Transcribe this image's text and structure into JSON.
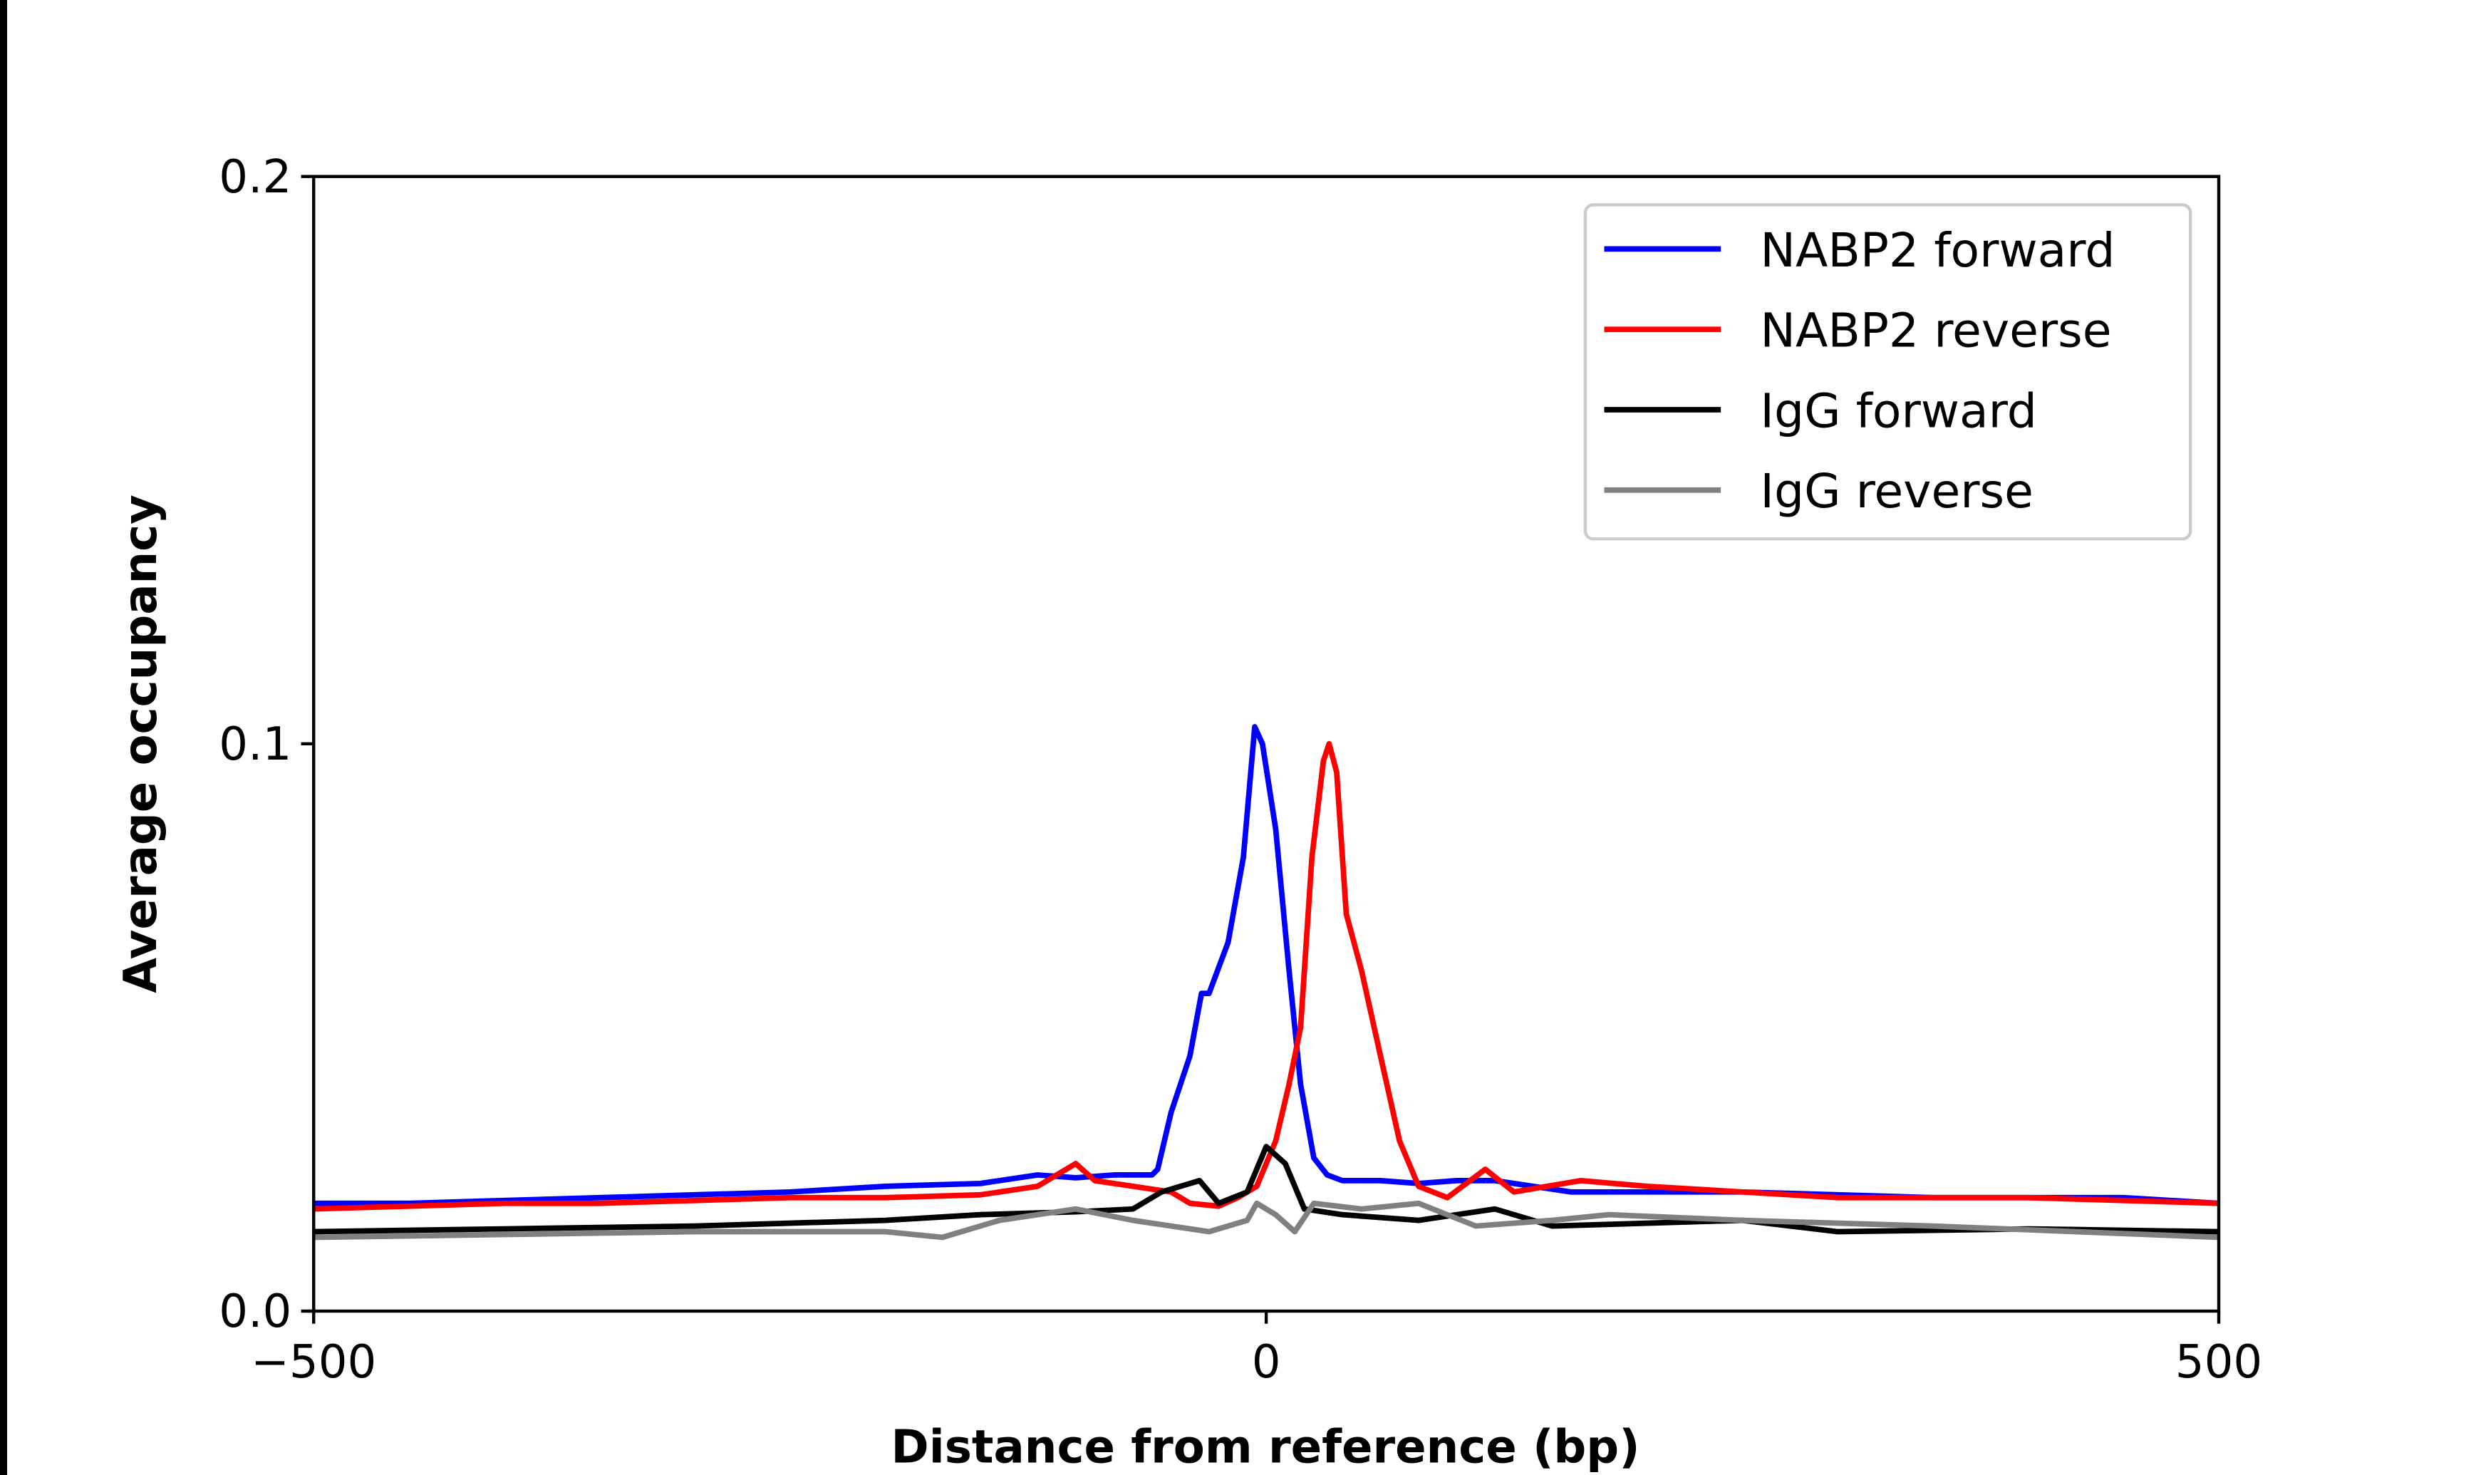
{
  "chart_data": {
    "type": "line",
    "title": "",
    "xlabel": "Distance from reference (bp)",
    "ylabel": "Average occupancy",
    "xlim": [
      -500,
      500
    ],
    "ylim": [
      0.0,
      0.2
    ],
    "xticks": [
      -500,
      0,
      500
    ],
    "xtick_labels": [
      "−500",
      "0",
      "500"
    ],
    "yticks": [
      0.0,
      0.1,
      0.2
    ],
    "ytick_labels": [
      "0.0",
      "0.1",
      "0.2"
    ],
    "grid": false,
    "legend_position": "top-right",
    "series": [
      {
        "name": "NABP2 forward",
        "color": "#0000ff",
        "x": [
          -500,
          -450,
          -400,
          -350,
          -300,
          -250,
          -200,
          -150,
          -120,
          -100,
          -80,
          -60,
          -57,
          -50,
          -40,
          -34,
          -30,
          -20,
          -12,
          -6,
          -2,
          5,
          12,
          18,
          25,
          32,
          40,
          60,
          80,
          100,
          120,
          140,
          160,
          200,
          250,
          300,
          350,
          400,
          450,
          500
        ],
        "y": [
          0.019,
          0.019,
          0.0195,
          0.02,
          0.0205,
          0.021,
          0.022,
          0.0225,
          0.024,
          0.0235,
          0.024,
          0.024,
          0.025,
          0.035,
          0.045,
          0.056,
          0.056,
          0.065,
          0.08,
          0.103,
          0.1,
          0.085,
          0.06,
          0.04,
          0.027,
          0.024,
          0.023,
          0.023,
          0.0225,
          0.023,
          0.023,
          0.022,
          0.021,
          0.021,
          0.021,
          0.0205,
          0.02,
          0.02,
          0.02,
          0.019
        ]
      },
      {
        "name": "NABP2 reverse",
        "color": "#ff0000",
        "x": [
          -500,
          -450,
          -400,
          -350,
          -300,
          -250,
          -200,
          -150,
          -120,
          -100,
          -90,
          -70,
          -50,
          -40,
          -25,
          -15,
          -5,
          5,
          12,
          18,
          24,
          30,
          33,
          37,
          42,
          50,
          60,
          70,
          80,
          95,
          115,
          130,
          165,
          200,
          250,
          300,
          350,
          400,
          450,
          500
        ],
        "y": [
          0.018,
          0.0185,
          0.019,
          0.019,
          0.0195,
          0.02,
          0.02,
          0.0205,
          0.022,
          0.026,
          0.023,
          0.022,
          0.021,
          0.019,
          0.0185,
          0.02,
          0.022,
          0.03,
          0.04,
          0.05,
          0.08,
          0.097,
          0.1,
          0.095,
          0.07,
          0.06,
          0.045,
          0.03,
          0.022,
          0.02,
          0.025,
          0.021,
          0.023,
          0.022,
          0.021,
          0.02,
          0.02,
          0.02,
          0.0195,
          0.019
        ]
      },
      {
        "name": "IgG forward",
        "color": "#000000",
        "x": [
          -500,
          -400,
          -300,
          -200,
          -150,
          -100,
          -70,
          -55,
          -45,
          -35,
          -25,
          -10,
          0,
          10,
          20,
          40,
          80,
          120,
          150,
          250,
          300,
          400,
          500
        ],
        "y": [
          0.014,
          0.0145,
          0.015,
          0.016,
          0.017,
          0.0175,
          0.018,
          0.021,
          0.022,
          0.023,
          0.019,
          0.021,
          0.029,
          0.026,
          0.018,
          0.017,
          0.016,
          0.018,
          0.015,
          0.016,
          0.014,
          0.0145,
          0.014
        ]
      },
      {
        "name": "IgG reverse",
        "color": "#808080",
        "x": [
          -500,
          -400,
          -300,
          -200,
          -170,
          -140,
          -100,
          -70,
          -30,
          -10,
          -5,
          5,
          15,
          25,
          50,
          80,
          110,
          150,
          180,
          250,
          350,
          500
        ],
        "y": [
          0.013,
          0.0135,
          0.014,
          0.014,
          0.013,
          0.016,
          0.018,
          0.016,
          0.014,
          0.016,
          0.019,
          0.017,
          0.014,
          0.019,
          0.018,
          0.019,
          0.015,
          0.016,
          0.017,
          0.016,
          0.015,
          0.013
        ]
      }
    ]
  }
}
